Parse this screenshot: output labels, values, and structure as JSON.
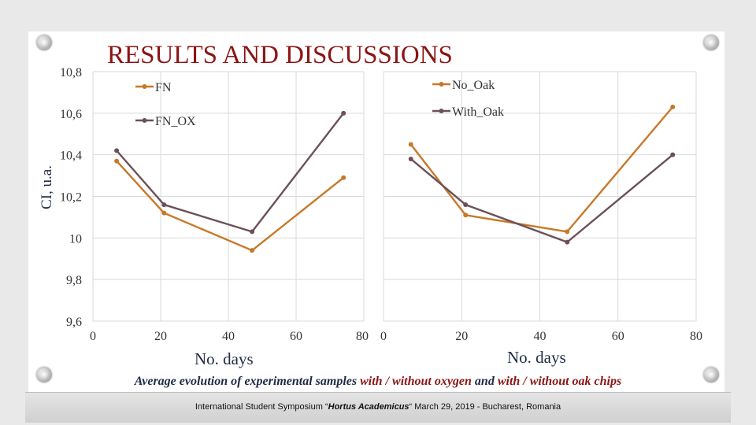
{
  "title": "RESULTS AND DISCUSSIONS",
  "caption": {
    "part1": "Average evolution of experimental samples ",
    "part2": "with / without oxygen",
    "part3": " and ",
    "part4": "with / without oak chips"
  },
  "footer": {
    "prefix": "International Student Symposium  “",
    "event": "Hortus Academicus",
    "suffix": "“  March 29, 2019 - Bucharest, Romania"
  },
  "colors": {
    "series_a": "#c8782a",
    "series_b": "#6b5156",
    "title": "#8b1414",
    "grid": "#d9d9d9"
  },
  "chart_data": [
    {
      "type": "line",
      "title": "",
      "xlabel": "No. days",
      "ylabel": "CI, u.a.",
      "xlim": [
        0,
        80
      ],
      "ylim": [
        9.6,
        10.8
      ],
      "xticks": [
        0,
        20,
        40,
        60,
        80
      ],
      "xtick_labels": [
        "0",
        "20",
        "40",
        "60",
        "80"
      ],
      "yticks": [
        9.6,
        9.8,
        10.0,
        10.2,
        10.4,
        10.6,
        10.8
      ],
      "ytick_labels": [
        "9,6",
        "9,8",
        "10",
        "10,2",
        "10,4",
        "10,6",
        "10,8"
      ],
      "grid": true,
      "legend_position": "top",
      "series": [
        {
          "name": "FN",
          "color": "#c8782a",
          "x": [
            7,
            21,
            47,
            74
          ],
          "y": [
            10.37,
            10.12,
            9.94,
            10.29
          ]
        },
        {
          "name": "FN_OX",
          "color": "#6b5156",
          "x": [
            7,
            21,
            47,
            74
          ],
          "y": [
            10.42,
            10.16,
            10.03,
            10.6
          ]
        }
      ]
    },
    {
      "type": "line",
      "title": "",
      "xlabel": "No. days",
      "ylabel": "",
      "xlim": [
        0,
        80
      ],
      "ylim": [
        9.6,
        10.8
      ],
      "xticks": [
        0,
        20,
        40,
        60,
        80
      ],
      "xtick_labels": [
        "0",
        "20",
        "40",
        "60",
        "80"
      ],
      "grid": true,
      "legend_position": "top-right",
      "series": [
        {
          "name": "No_Oak",
          "color": "#c8782a",
          "x": [
            7,
            21,
            47,
            74
          ],
          "y": [
            10.45,
            10.11,
            10.03,
            10.63
          ]
        },
        {
          "name": "With_Oak",
          "color": "#6b5156",
          "x": [
            7,
            21,
            47,
            74
          ],
          "y": [
            10.38,
            10.16,
            9.98,
            10.4
          ]
        }
      ]
    }
  ]
}
